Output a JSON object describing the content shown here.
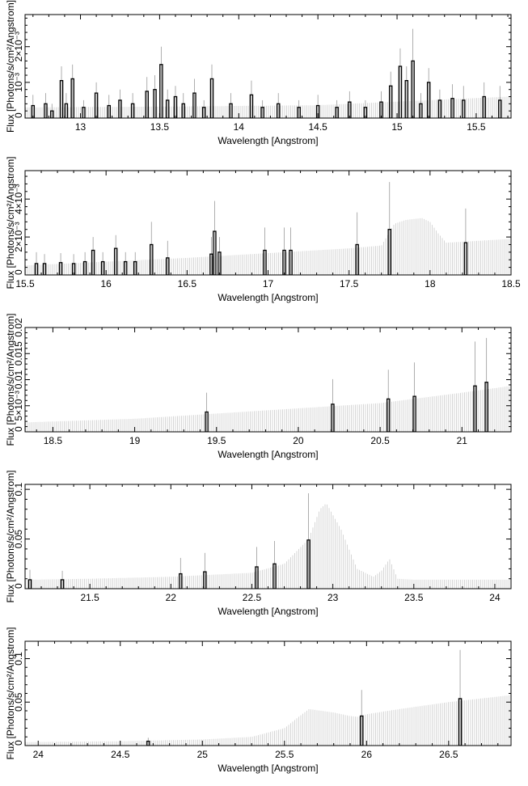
{
  "chart_data": [
    {
      "type": "line",
      "xlabel": "Wavelength [Angstrom]",
      "ylabel": "Flux [Photons/s/cm²/Angstrom]",
      "xlim": [
        12.65,
        15.72
      ],
      "ylim": [
        0,
        0.0029
      ],
      "x_ticks": [
        13,
        13.5,
        14,
        14.5,
        15,
        15.5
      ],
      "x_tick_labels": [
        "13",
        "13.5",
        "14",
        "14.5",
        "15",
        "15.5"
      ],
      "y_ticks": [
        0,
        0.001,
        0.002
      ],
      "y_tick_labels": [
        "0",
        "10⁻³",
        "2×10⁻³"
      ],
      "series": [
        {
          "role": "model",
          "color": "#cccccc",
          "x": [
            12.65,
            13.5,
            14.5,
            15.7
          ],
          "y": [
            0.0003,
            0.00032,
            0.00036,
            0.0006
          ]
        },
        {
          "role": "data",
          "color": "#000000",
          "x": [
            12.7,
            12.78,
            12.82,
            12.88,
            12.91,
            12.95,
            13.02,
            13.1,
            13.18,
            13.25,
            13.33,
            13.42,
            13.47,
            13.51,
            13.55,
            13.6,
            13.65,
            13.72,
            13.78,
            13.83,
            13.95,
            14.08,
            14.15,
            14.25,
            14.38,
            14.5,
            14.62,
            14.7,
            14.8,
            14.9,
            14.96,
            15.02,
            15.06,
            15.1,
            15.15,
            15.2,
            15.27,
            15.35,
            15.42,
            15.55,
            15.65
          ],
          "y": [
            0.00035,
            0.0004,
            0.0002,
            0.00105,
            0.0004,
            0.0011,
            0.0003,
            0.0007,
            0.00035,
            0.0005,
            0.0004,
            0.00075,
            0.0008,
            0.0015,
            0.0005,
            0.0006,
            0.0004,
            0.0007,
            0.0003,
            0.0011,
            0.0004,
            0.00065,
            0.0003,
            0.0004,
            0.0003,
            0.00035,
            0.0003,
            0.00045,
            0.0003,
            0.00045,
            0.0009,
            0.00145,
            0.00105,
            0.0016,
            0.0004,
            0.001,
            0.0005,
            0.00055,
            0.0005,
            0.0006,
            0.0005
          ],
          "err": [
            0.0003,
            0.0003,
            0.0002,
            0.0004,
            0.0003,
            0.0004,
            0.0002,
            0.0003,
            0.0003,
            0.0003,
            0.0003,
            0.0004,
            0.0004,
            0.0005,
            0.0003,
            0.0003,
            0.0003,
            0.0004,
            0.0002,
            0.0004,
            0.0003,
            0.0004,
            0.0002,
            0.0003,
            0.0002,
            0.0003,
            0.0002,
            0.0003,
            0.0002,
            0.0003,
            0.0004,
            0.0005,
            0.0004,
            0.0009,
            0.0003,
            0.0004,
            0.0003,
            0.0004,
            0.0004,
            0.0004,
            0.0004
          ]
        }
      ]
    },
    {
      "type": "line",
      "xlabel": "Wavelength [Angstrom]",
      "ylabel": "Flux [Photons/s/cm²/Angstrom]",
      "xlim": [
        15.5,
        18.5
      ],
      "ylim": [
        0,
        0.0055
      ],
      "x_ticks": [
        15.5,
        16,
        16.5,
        17,
        17.5,
        18,
        18.5
      ],
      "x_tick_labels": [
        "15.5",
        "16",
        "16.5",
        "17",
        "17.5",
        "18",
        "18.5"
      ],
      "y_ticks": [
        0,
        0.002,
        0.004
      ],
      "y_tick_labels": [
        "0",
        "2×10⁻³",
        "4×10⁻³"
      ],
      "series": [
        {
          "role": "model",
          "color": "#cccccc",
          "x": [
            15.5,
            16.0,
            16.5,
            17.0,
            17.5,
            17.7,
            17.78,
            17.85,
            17.95,
            18.0,
            18.05,
            18.1,
            18.5
          ],
          "y": [
            0.0005,
            0.0007,
            0.0009,
            0.00115,
            0.0014,
            0.00155,
            0.0027,
            0.0029,
            0.003,
            0.0028,
            0.0022,
            0.0017,
            0.0019
          ]
        },
        {
          "role": "data",
          "color": "#000000",
          "x": [
            15.57,
            15.62,
            15.72,
            15.8,
            15.87,
            15.92,
            15.98,
            16.06,
            16.12,
            16.18,
            16.28,
            16.38,
            16.65,
            16.67,
            16.7,
            16.98,
            17.1,
            17.14,
            17.55,
            17.75,
            18.22
          ],
          "y": [
            0.0006,
            0.0006,
            0.00065,
            0.0006,
            0.0007,
            0.0013,
            0.0007,
            0.0014,
            0.0007,
            0.0007,
            0.0016,
            0.0009,
            0.0011,
            0.0023,
            0.0012,
            0.0013,
            0.0013,
            0.0013,
            0.0016,
            0.0024,
            0.0017
          ],
          "err": [
            0.0006,
            0.0005,
            0.0005,
            0.0005,
            0.0005,
            0.0007,
            0.0005,
            0.0007,
            0.0005,
            0.0005,
            0.0012,
            0.0009,
            0.0009,
            0.0016,
            0.0008,
            0.0012,
            0.0012,
            0.0012,
            0.0017,
            0.0025,
            0.0018
          ]
        }
      ]
    },
    {
      "type": "line",
      "xlabel": "Wavelength [Angstrom]",
      "ylabel": "Flux [Photons/s/cm²/Angstrom]",
      "xlim": [
        18.33,
        21.3
      ],
      "ylim": [
        0,
        0.02
      ],
      "x_ticks": [
        18.5,
        19,
        19.5,
        20,
        20.5,
        21
      ],
      "x_tick_labels": [
        "18.5",
        "19",
        "19.5",
        "20",
        "20.5",
        "21"
      ],
      "y_ticks": [
        0,
        0.005,
        0.01,
        0.015,
        0.02
      ],
      "y_tick_labels": [
        "0",
        "5×10⁻³",
        "0.01",
        "0.015",
        "0.02"
      ],
      "series": [
        {
          "role": "model",
          "color": "#cccccc",
          "x": [
            18.33,
            19.0,
            19.5,
            20.0,
            20.5,
            21.0,
            21.3
          ],
          "y": [
            0.0018,
            0.0025,
            0.0035,
            0.0045,
            0.0055,
            0.0075,
            0.0088
          ]
        },
        {
          "role": "data",
          "color": "#000000",
          "x": [
            19.44,
            20.21,
            20.55,
            20.71,
            21.08,
            21.15
          ],
          "y": [
            0.0038,
            0.0053,
            0.0063,
            0.0068,
            0.0088,
            0.0095
          ],
          "err": [
            0.0037,
            0.0048,
            0.0056,
            0.0065,
            0.0085,
            0.0085
          ]
        }
      ]
    },
    {
      "type": "line",
      "xlabel": "Wavelength [Angstrom]",
      "ylabel": "Flux [Photons/s/cm²/Angstrom]",
      "xlim": [
        21.1,
        24.1
      ],
      "ylim": [
        0,
        0.105
      ],
      "x_ticks": [
        21.5,
        22,
        22.5,
        23,
        23.5,
        24
      ],
      "x_tick_labels": [
        "21.5",
        "22",
        "22.5",
        "23",
        "23.5",
        "24"
      ],
      "y_ticks": [
        0,
        0.05,
        0.1
      ],
      "y_tick_labels": [
        "0",
        "0.05",
        "0.1"
      ],
      "series": [
        {
          "role": "model",
          "color": "#cccccc",
          "x": [
            21.1,
            21.5,
            22.0,
            22.5,
            22.7,
            22.85,
            22.92,
            22.96,
            23.05,
            23.15,
            23.25,
            23.3,
            23.35,
            23.4,
            23.5,
            24.1
          ],
          "y": [
            0.009,
            0.01,
            0.012,
            0.016,
            0.025,
            0.05,
            0.08,
            0.086,
            0.06,
            0.02,
            0.012,
            0.018,
            0.03,
            0.01,
            0.009,
            0.009
          ]
        },
        {
          "role": "data",
          "color": "#000000",
          "x": [
            21.13,
            21.33,
            22.06,
            22.21,
            22.53,
            22.64,
            22.85
          ],
          "y": [
            0.009,
            0.009,
            0.015,
            0.017,
            0.022,
            0.025,
            0.049
          ],
          "err": [
            0.01,
            0.009,
            0.016,
            0.019,
            0.02,
            0.023,
            0.047
          ]
        }
      ]
    },
    {
      "type": "line",
      "xlabel": "Wavelength [Angstrom]",
      "ylabel": "Flux [Photons/s/cm²/Angstrom]",
      "xlim": [
        23.92,
        26.88
      ],
      "ylim": [
        0,
        0.12
      ],
      "x_ticks": [
        24,
        24.5,
        25,
        25.5,
        26,
        26.5
      ],
      "x_tick_labels": [
        "24",
        "24.5",
        "25",
        "25.5",
        "26",
        "26.5"
      ],
      "y_ticks": [
        0,
        0.05,
        0.1
      ],
      "y_tick_labels": [
        "0",
        "0.05",
        "0.1"
      ],
      "series": [
        {
          "role": "model",
          "color": "#cccccc",
          "x": [
            23.92,
            24.5,
            25.0,
            25.3,
            25.5,
            25.6,
            25.65,
            25.8,
            25.9,
            25.95,
            26.0,
            26.2,
            26.5,
            26.88
          ],
          "y": [
            0.004,
            0.005,
            0.007,
            0.01,
            0.02,
            0.035,
            0.042,
            0.038,
            0.034,
            0.033,
            0.036,
            0.042,
            0.05,
            0.058
          ]
        },
        {
          "role": "data",
          "color": "#000000",
          "x": [
            24.67,
            25.97,
            26.57
          ],
          "y": [
            0.005,
            0.034,
            0.054
          ],
          "err": [
            0.004,
            0.03,
            0.056
          ]
        }
      ]
    }
  ]
}
